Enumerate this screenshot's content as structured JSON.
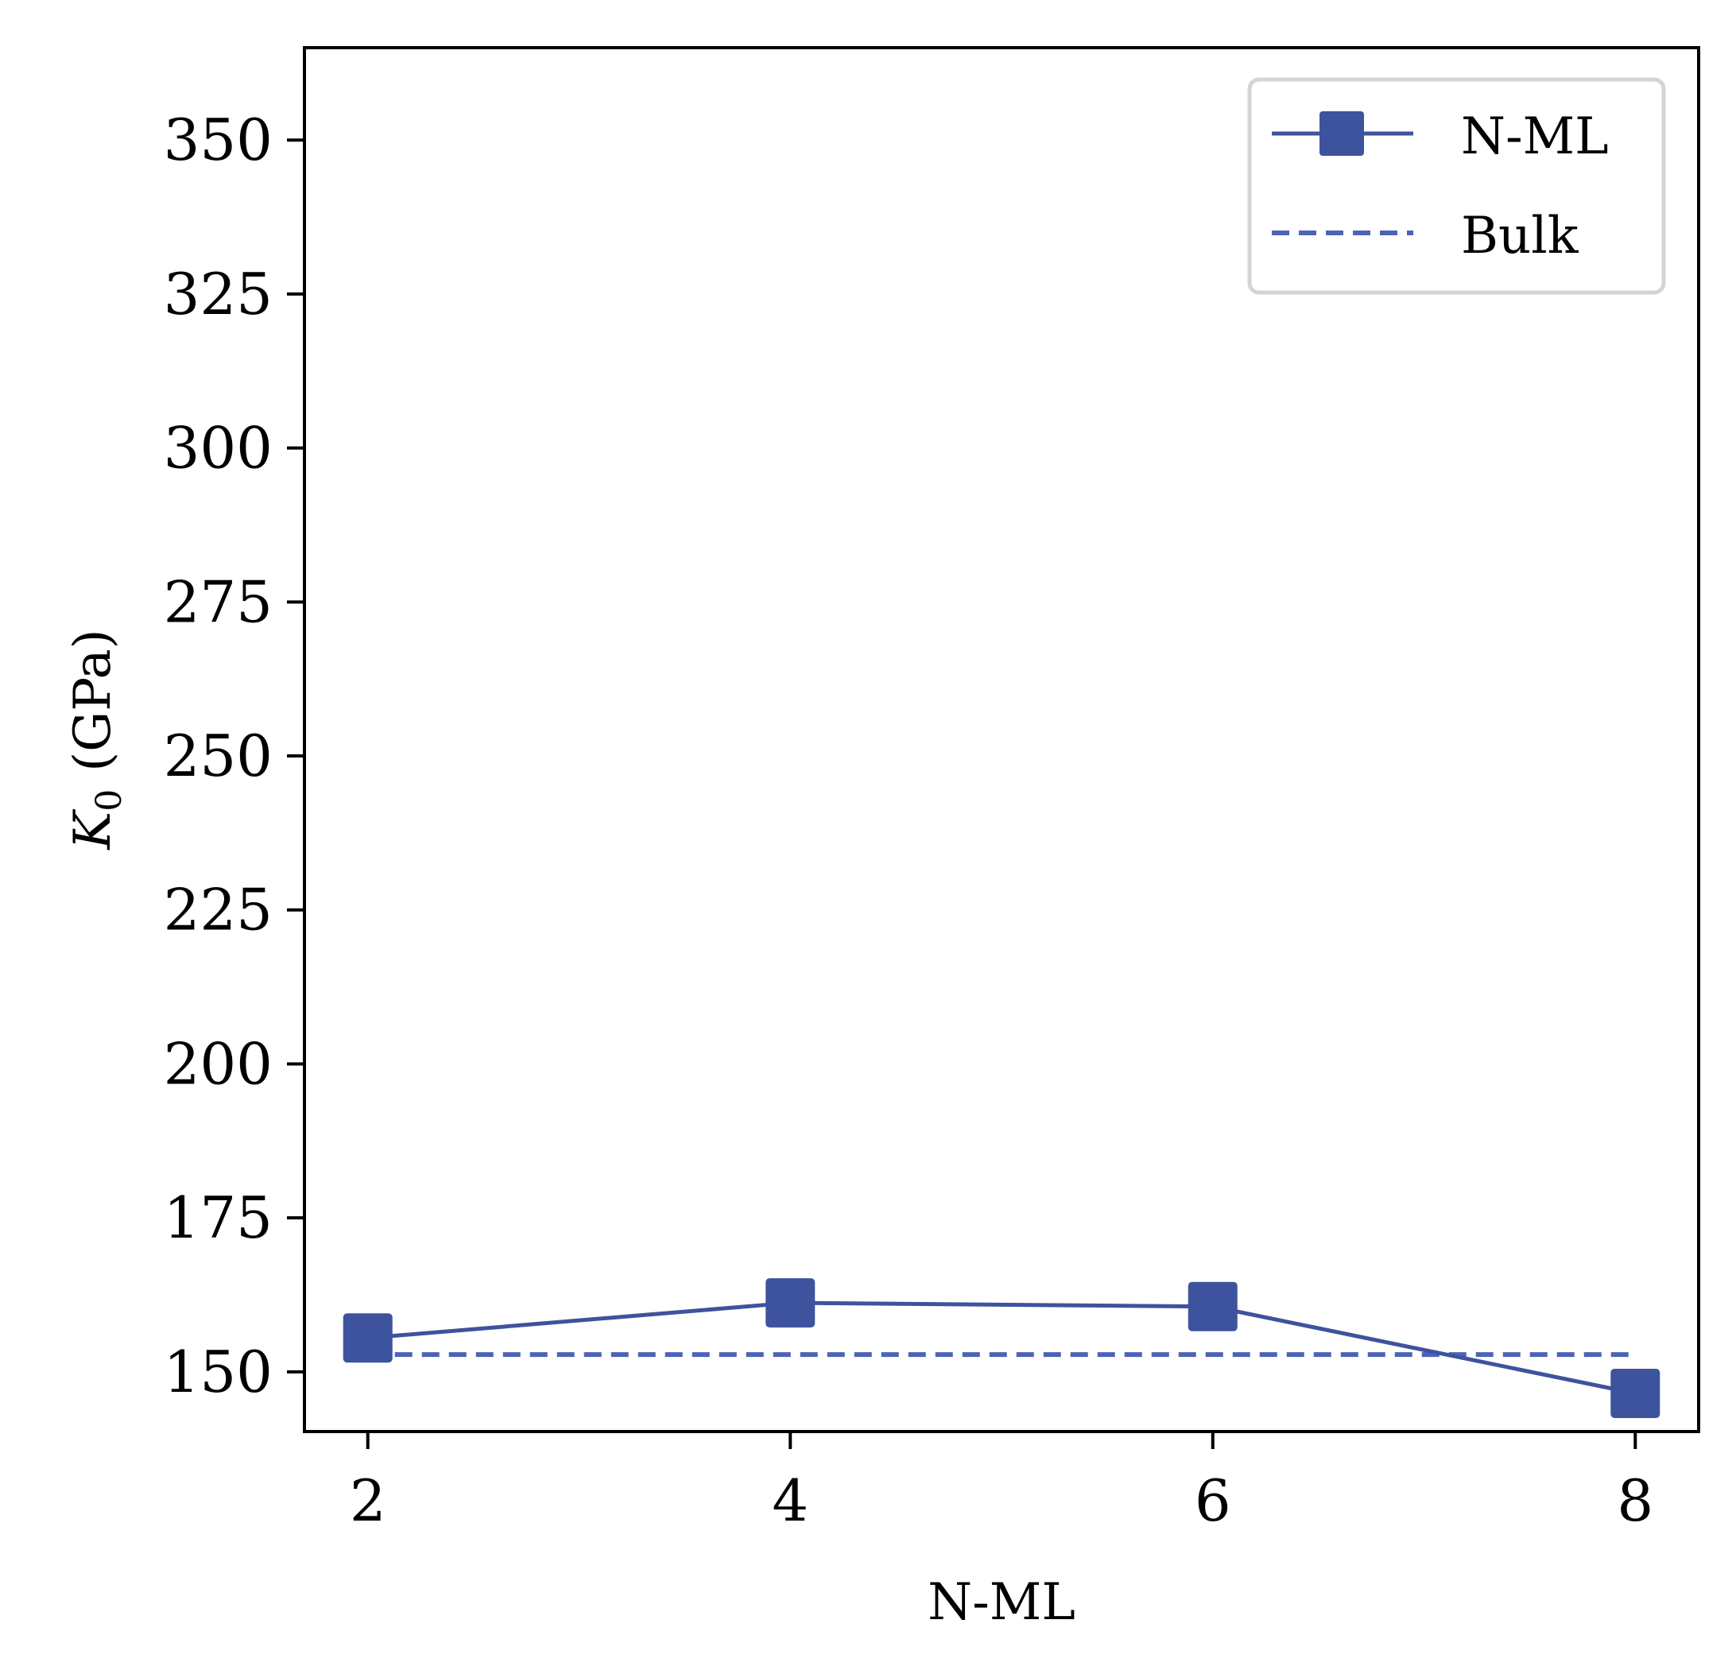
{
  "chart_data": {
    "type": "line",
    "x": [
      2,
      4,
      6,
      8
    ],
    "series": [
      {
        "name": "N-ML",
        "x": [
          2,
          4,
          6,
          8
        ],
        "values": [
          155.5,
          161.2,
          160.6,
          146.5
        ],
        "color": "#3e539e",
        "style": "solid",
        "marker": "square"
      },
      {
        "name": "Bulk",
        "x": [
          2,
          8
        ],
        "values": [
          152.8,
          152.8
        ],
        "color": "#4c63b6",
        "style": "dashed"
      }
    ],
    "xlabel": "N-ML",
    "ylabel_symbol": "K",
    "ylabel_subscript": "0",
    "ylabel_unit": "(GPa)",
    "xticks": [
      2,
      4,
      6,
      8
    ],
    "yticks": [
      150,
      175,
      200,
      225,
      250,
      275,
      300,
      325,
      350
    ],
    "xlim": [
      1.7,
      8.3
    ],
    "ylim": [
      140.3,
      365
    ],
    "grid": false,
    "legend_position": "top-right",
    "legend_frame_color": "#d4d4d4"
  }
}
